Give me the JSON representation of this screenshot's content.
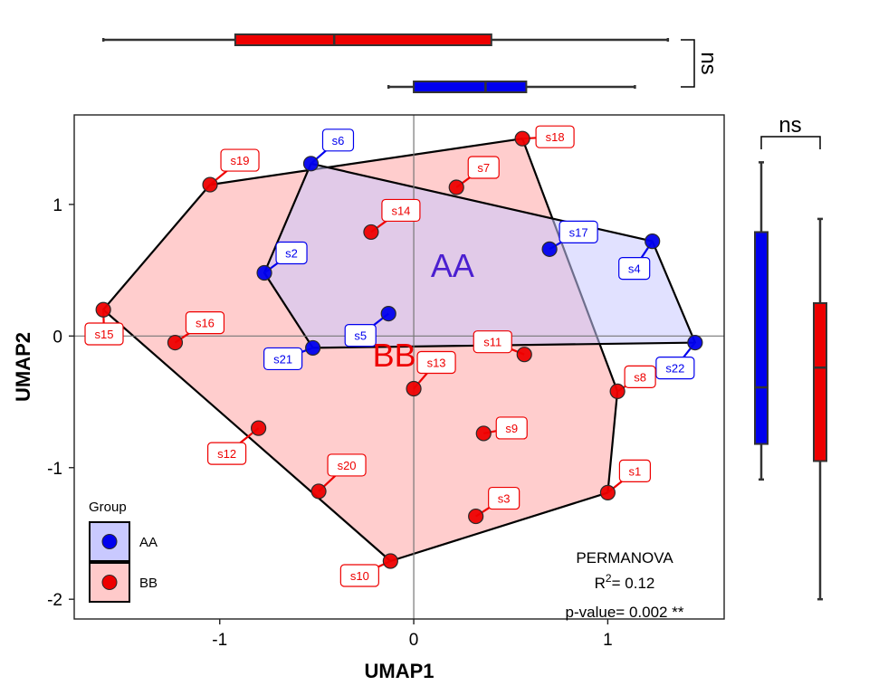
{
  "chart_data": {
    "type": "scatter",
    "xlabel": "UMAP1",
    "ylabel": "UMAP2",
    "xlim": [
      -1.75,
      1.6
    ],
    "ylim": [
      -2.15,
      1.68
    ],
    "xticks": [
      -1,
      0,
      1
    ],
    "yticks": [
      -2,
      -1,
      0,
      1
    ],
    "reference_lines": {
      "x": 0,
      "y": 0
    },
    "grid": false,
    "legend": {
      "title": "Group",
      "position": "bottom-left",
      "entries": [
        "AA",
        "BB"
      ]
    },
    "group_labels": [
      {
        "text": "AA",
        "x": 0.2,
        "y": 0.45,
        "group": "AA"
      },
      {
        "text": "BB",
        "x": -0.1,
        "y": -0.23,
        "group": "BB"
      }
    ],
    "annotation": {
      "title": "PERMANOVA",
      "r2_prefix": "R",
      "r2_sup": "2",
      "r2_value": "= 0.12",
      "p_value": "p-value= 0.002 **"
    },
    "series": [
      {
        "name": "AA",
        "color": "#0000ee",
        "fill": "#c9c9ff",
        "hull": [
          "s22",
          "s4",
          "s6",
          "s2",
          "s21"
        ],
        "points": [
          {
            "label": "s2",
            "x": -0.77,
            "y": 0.48
          },
          {
            "label": "s4",
            "x": 1.23,
            "y": 0.72
          },
          {
            "label": "s5",
            "x": -0.13,
            "y": 0.17
          },
          {
            "label": "s6",
            "x": -0.53,
            "y": 1.31
          },
          {
            "label": "s17",
            "x": 0.7,
            "y": 0.66
          },
          {
            "label": "s21",
            "x": -0.52,
            "y": -0.09
          },
          {
            "label": "s22",
            "x": 1.45,
            "y": -0.05
          }
        ]
      },
      {
        "name": "BB",
        "color": "#ee0000",
        "fill": "#ffcaca",
        "hull": [
          "s15",
          "s19",
          "s18",
          "s8",
          "s1",
          "s10"
        ],
        "points": [
          {
            "label": "s1",
            "x": 1.0,
            "y": -1.19
          },
          {
            "label": "s3",
            "x": 0.32,
            "y": -1.37
          },
          {
            "label": "s7",
            "x": 0.22,
            "y": 1.13
          },
          {
            "label": "s8",
            "x": 1.05,
            "y": -0.42
          },
          {
            "label": "s9",
            "x": 0.36,
            "y": -0.74
          },
          {
            "label": "s10",
            "x": -0.12,
            "y": -1.71
          },
          {
            "label": "s11",
            "x": 0.57,
            "y": -0.14
          },
          {
            "label": "s12",
            "x": -0.8,
            "y": -0.7
          },
          {
            "label": "s13",
            "x": 0.0,
            "y": -0.4
          },
          {
            "label": "s14",
            "x": -0.22,
            "y": 0.79
          },
          {
            "label": "s15",
            "x": -1.6,
            "y": 0.2
          },
          {
            "label": "s16",
            "x": -1.23,
            "y": -0.05
          },
          {
            "label": "s18",
            "x": 0.56,
            "y": 1.5
          },
          {
            "label": "s19",
            "x": -1.05,
            "y": 1.15
          },
          {
            "label": "s20",
            "x": -0.49,
            "y": -1.18
          }
        ]
      }
    ],
    "marginal_boxplots": {
      "x": {
        "significance": "ns",
        "boxes": [
          {
            "group": "BB",
            "min": -1.6,
            "q1": -0.92,
            "median": -0.41,
            "q3": 0.4,
            "max": 1.31
          },
          {
            "group": "AA",
            "min": -0.13,
            "q1": 0.0,
            "median": 0.37,
            "q3": 0.58,
            "max": 1.14
          }
        ]
      },
      "y": {
        "significance": "ns",
        "boxes": [
          {
            "group": "AA",
            "min": -1.09,
            "q1": -0.82,
            "median": -0.39,
            "q3": 0.79,
            "max": 1.32
          },
          {
            "group": "BB",
            "min": -2.0,
            "q1": -0.95,
            "median": -0.24,
            "q3": 0.25,
            "max": 0.89
          }
        ]
      }
    }
  }
}
